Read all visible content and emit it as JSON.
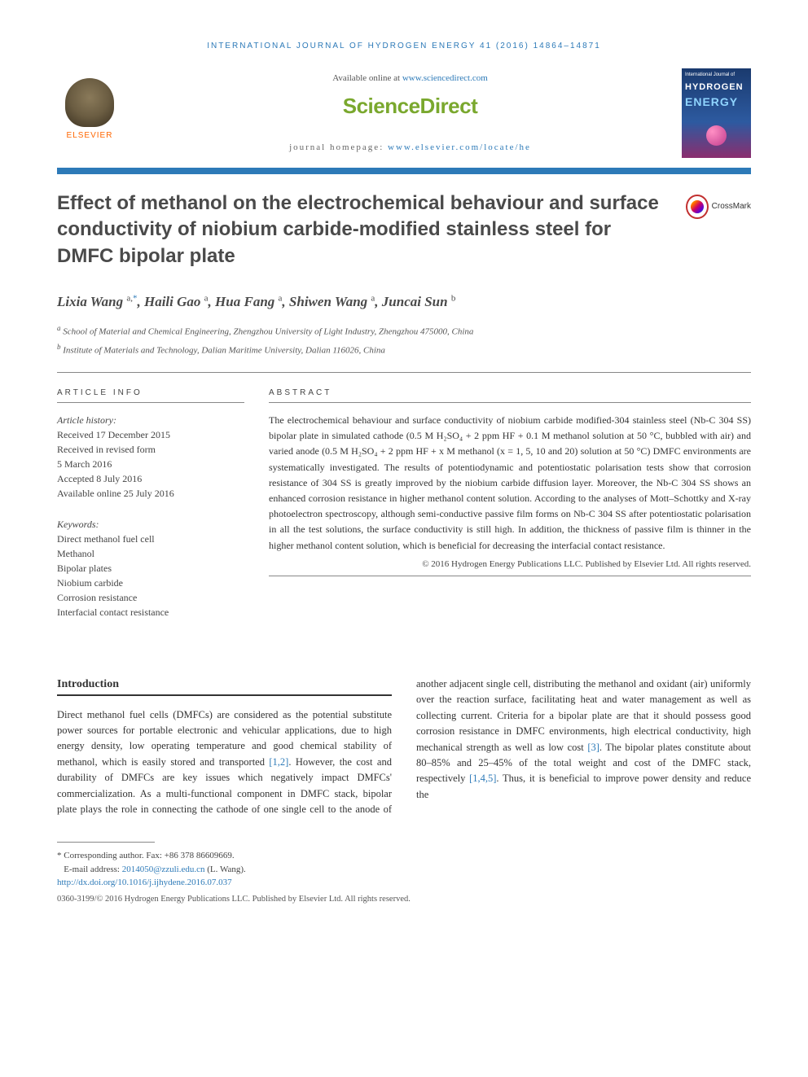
{
  "running_header": "INTERNATIONAL JOURNAL OF HYDROGEN ENERGY 41 (2016) 14864–14871",
  "header": {
    "available_prefix": "Available online at ",
    "available_url": "www.sciencedirect.com",
    "brand": "ScienceDirect",
    "homepage_prefix": "journal homepage: ",
    "homepage_url": "www.elsevier.com/locate/he",
    "elsevier_label": "ELSEVIER"
  },
  "journal_cover": {
    "line1": "International Journal of",
    "line2": "HYDROGEN",
    "line3": "ENERGY"
  },
  "article": {
    "title": "Effect of methanol on the electrochemical behaviour and surface conductivity of niobium carbide-modified stainless steel for DMFC bipolar plate",
    "crossmark_label": "CrossMark"
  },
  "authors_html": "Lixia Wang <sup>a,</sup><sup class='corr'>*</sup>, Haili Gao <sup>a</sup>, Hua Fang <sup>a</sup>, Shiwen Wang <sup>a</sup>, Juncai Sun <sup>b</sup>",
  "affiliations": [
    "a School of Material and Chemical Engineering, Zhengzhou University of Light Industry, Zhengzhou 475000, China",
    "b Institute of Materials and Technology, Dalian Maritime University, Dalian 116026, China"
  ],
  "article_info": {
    "label": "ARTICLE INFO",
    "history_label": "Article history:",
    "history": [
      "Received 17 December 2015",
      "Received in revised form",
      "5 March 2016",
      "Accepted 8 July 2016",
      "Available online 25 July 2016"
    ],
    "keywords_label": "Keywords:",
    "keywords": [
      "Direct methanol fuel cell",
      "Methanol",
      "Bipolar plates",
      "Niobium carbide",
      "Corrosion resistance",
      "Interfacial contact resistance"
    ]
  },
  "abstract": {
    "label": "ABSTRACT",
    "text": "The electrochemical behaviour and surface conductivity of niobium carbide modified-304 stainless steel (Nb-C 304 SS) bipolar plate in simulated cathode (0.5 M H₂SO₄ + 2 ppm HF + 0.1 M methanol solution at 50 °C, bubbled with air) and varied anode (0.5 M H₂SO₄ + 2 ppm HF + x M methanol (x = 1, 5, 10 and 20) solution at 50 °C) DMFC environments are systematically investigated. The results of potentiodynamic and potentiostatic polarisation tests show that corrosion resistance of 304 SS is greatly improved by the niobium carbide diffusion layer. Moreover, the Nb-C 304 SS shows an enhanced corrosion resistance in higher methanol content solution. According to the analyses of Mott–Schottky and X-ray photoelectron spectroscopy, although semi-conductive passive film forms on Nb-C 304 SS after potentiostatic polarisation in all the test solutions, the surface conductivity is still high. In addition, the thickness of passive film is thinner in the higher methanol content solution, which is beneficial for decreasing the interfacial contact resistance.",
    "copyright": "© 2016 Hydrogen Energy Publications LLC. Published by Elsevier Ltd. All rights reserved."
  },
  "body": {
    "intro_heading": "Introduction",
    "col1": "Direct methanol fuel cells (DMFCs) are considered as the potential substitute power sources for portable electronic and vehicular applications, due to high energy density, low operating temperature and good chemical stability of methanol, which is easily stored and transported [1,2]. However, the cost and durability of DMFCs are key issues which negatively impact DMFCs' commercialization. As a multi-functional component in DMFC stack, bipolar plate plays the role in",
    "col2": "connecting the cathode of one single cell to the anode of another adjacent single cell, distributing the methanol and oxidant (air) uniformly over the reaction surface, facilitating heat and water management as well as collecting current. Criteria for a bipolar plate are that it should possess good corrosion resistance in DMFC environments, high electrical conductivity, high mechanical strength as well as low cost [3]. The bipolar plates constitute about 80–85% and 25–45% of the total weight and cost of the DMFC stack, respectively [1,4,5]. Thus, it is beneficial to improve power density and reduce the",
    "refs": {
      "r12": "[1,2]",
      "r3": "[3]",
      "r145": "[1,4,5]"
    }
  },
  "footnotes": {
    "corr_label": "* Corresponding author.",
    "corr_fax": " Fax: +86 378 86609669.",
    "email_label": "E-mail address: ",
    "email": "2014050@zzuli.edu.cn",
    "email_suffix": " (L. Wang).",
    "doi": "http://dx.doi.org/10.1016/j.ijhydene.2016.07.037",
    "issn_copyright": "0360-3199/© 2016 Hydrogen Energy Publications LLC. Published by Elsevier Ltd. All rights reserved."
  },
  "colors": {
    "link": "#2d7ab8",
    "sd_green": "#7aa82e",
    "elsevier_orange": "#ff6600",
    "separator": "#2d7ab8",
    "text": "#333333"
  }
}
